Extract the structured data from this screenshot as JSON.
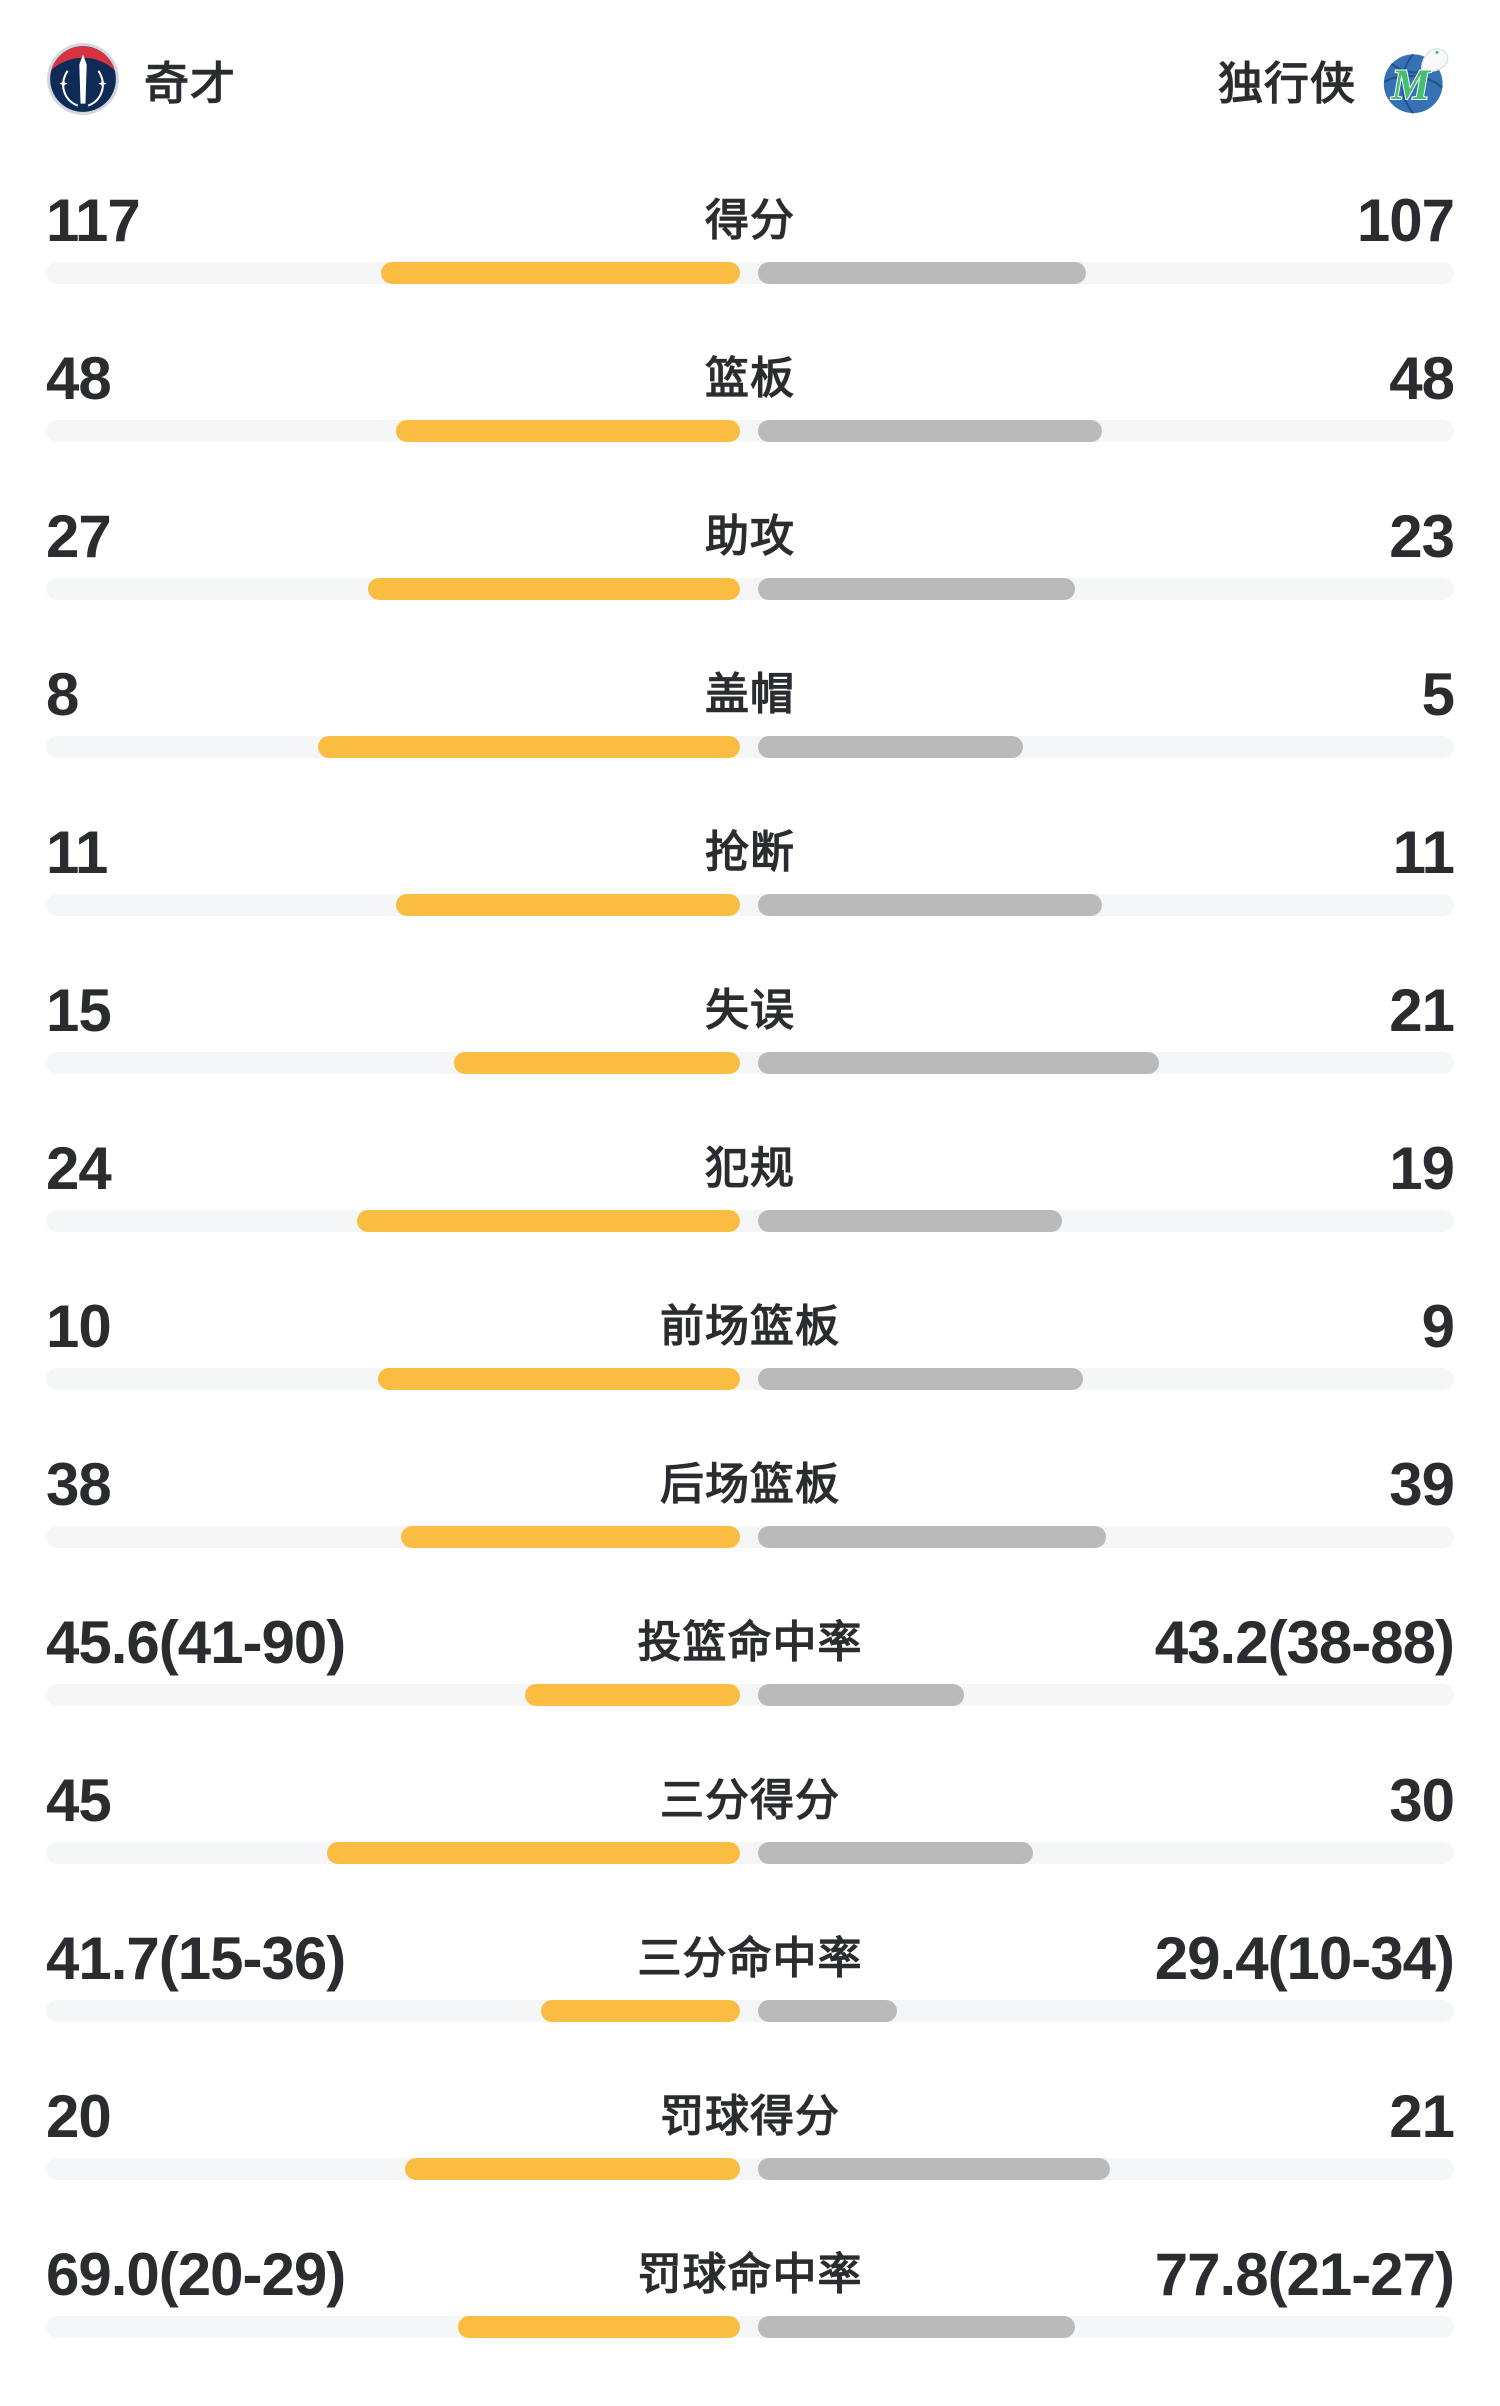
{
  "header": {
    "left_team": {
      "name": "奇才",
      "logo_icon": "wizards-logo-icon"
    },
    "right_team": {
      "name": "独行侠",
      "logo_icon": "mavericks-logo-icon"
    }
  },
  "colors": {
    "left_bar": "#fbbd41",
    "right_bar": "#bababa",
    "track": "#f5f6f7",
    "text": "#2b2c30",
    "wizards_navy": "#0d2b56",
    "wizards_red": "#d8313f",
    "mavericks_blue": "#3671b4",
    "mavericks_green": "#45be70"
  },
  "chart_data": {
    "type": "bar",
    "orientation": "horizontal-paired",
    "legend": [
      "奇才",
      "独行侠"
    ],
    "rows": [
      {
        "label": "得分",
        "left": "117",
        "right": "107",
        "left_num": 117,
        "right_num": 107,
        "left_bar_pct": 25.5,
        "right_bar_pct": 23.3
      },
      {
        "label": "篮板",
        "left": "48",
        "right": "48",
        "left_num": 48,
        "right_num": 48,
        "left_bar_pct": 24.4,
        "right_bar_pct": 24.4
      },
      {
        "label": "助攻",
        "left": "27",
        "right": "23",
        "left_num": 27,
        "right_num": 23,
        "left_bar_pct": 26.4,
        "right_bar_pct": 22.5
      },
      {
        "label": "盖帽",
        "left": "8",
        "right": "5",
        "left_num": 8,
        "right_num": 5,
        "left_bar_pct": 30.0,
        "right_bar_pct": 18.8
      },
      {
        "label": "抢断",
        "left": "11",
        "right": "11",
        "left_num": 11,
        "right_num": 11,
        "left_bar_pct": 24.4,
        "right_bar_pct": 24.4
      },
      {
        "label": "失误",
        "left": "15",
        "right": "21",
        "left_num": 15,
        "right_num": 21,
        "left_bar_pct": 20.3,
        "right_bar_pct": 28.5
      },
      {
        "label": "犯规",
        "left": "24",
        "right": "19",
        "left_num": 24,
        "right_num": 19,
        "left_bar_pct": 27.2,
        "right_bar_pct": 21.6
      },
      {
        "label": "前场篮板",
        "left": "10",
        "right": "9",
        "left_num": 10,
        "right_num": 9,
        "left_bar_pct": 25.7,
        "right_bar_pct": 23.1
      },
      {
        "label": "后场篮板",
        "left": "38",
        "right": "39",
        "left_num": 38,
        "right_num": 39,
        "left_bar_pct": 24.1,
        "right_bar_pct": 24.7
      },
      {
        "label": "投篮命中率",
        "left": "45.6(41-90)",
        "right": "43.2(38-88)",
        "left_num": 45.6,
        "right_num": 43.2,
        "left_bar_pct": 15.3,
        "right_bar_pct": 14.6
      },
      {
        "label": "三分得分",
        "left": "45",
        "right": "30",
        "left_num": 45,
        "right_num": 30,
        "left_bar_pct": 29.3,
        "right_bar_pct": 19.5
      },
      {
        "label": "三分命中率",
        "left": "41.7(15-36)",
        "right": "29.4(10-34)",
        "left_num": 41.7,
        "right_num": 29.4,
        "left_bar_pct": 14.1,
        "right_bar_pct": 9.9
      },
      {
        "label": "罚球得分",
        "left": "20",
        "right": "21",
        "left_num": 20,
        "right_num": 21,
        "left_bar_pct": 23.8,
        "right_bar_pct": 25.0
      },
      {
        "label": "罚球命中率",
        "left": "69.0(20-29)",
        "right": "77.8(21-27)",
        "left_num": 69.0,
        "right_num": 77.8,
        "left_bar_pct": 20.0,
        "right_bar_pct": 22.5
      }
    ]
  }
}
